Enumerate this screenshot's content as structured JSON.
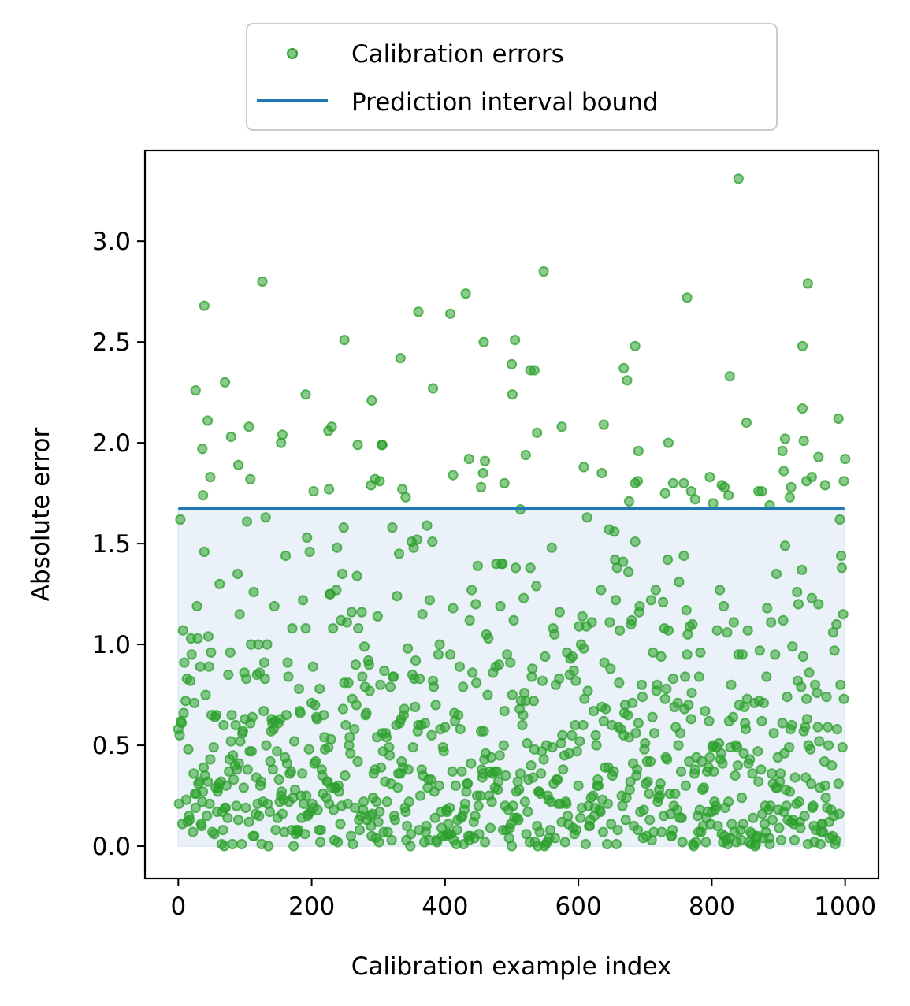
{
  "chart_data": {
    "type": "scatter",
    "xlabel": "Calibration example index",
    "ylabel": "Absolute error",
    "xlim": [
      -50,
      1050
    ],
    "ylim": [
      -0.16,
      3.45
    ],
    "x_ticks": [
      0,
      200,
      400,
      600,
      800,
      1000
    ],
    "y_ticks": [
      0.0,
      0.5,
      1.0,
      1.5,
      2.0,
      2.5,
      3.0
    ],
    "x_tick_labels": [
      "0",
      "200",
      "400",
      "600",
      "800",
      "1000"
    ],
    "y_tick_labels": [
      "0.0",
      "0.5",
      "1.0",
      "1.5",
      "2.0",
      "2.5",
      "3.0"
    ],
    "legend": {
      "placement": "top-center-outside",
      "entries": [
        {
          "label": "Calibration errors",
          "kind": "marker",
          "color": "#2ca02c"
        },
        {
          "label": "Prediction interval bound",
          "kind": "line",
          "color": "#1f77b4"
        }
      ]
    },
    "bound": {
      "y": 1.675,
      "x_range": [
        0,
        999
      ],
      "color": "#1f77b4"
    },
    "fill": {
      "y_range": [
        0,
        1.675
      ],
      "x_range": [
        0,
        999
      ],
      "color": "#dce8f4"
    },
    "series": [
      {
        "color": "#2ca02c",
        "n_points": 1000,
        "points": [
          [
            840,
            3.31
          ],
          [
            126,
            2.8
          ],
          [
            548,
            2.85
          ],
          [
            944,
            2.79
          ],
          [
            763,
            2.72
          ],
          [
            39,
            2.68
          ],
          [
            431,
            2.74
          ],
          [
            360,
            2.65
          ],
          [
            408,
            2.64
          ],
          [
            249,
            2.51
          ],
          [
            458,
            2.5
          ],
          [
            505,
            2.51
          ],
          [
            685,
            2.48
          ],
          [
            936,
            2.48
          ],
          [
            500,
            2.39
          ],
          [
            333,
            2.42
          ],
          [
            528,
            2.36
          ],
          [
            534,
            2.36
          ],
          [
            668,
            2.37
          ],
          [
            673,
            2.31
          ],
          [
            827,
            2.33
          ],
          [
            26,
            2.26
          ],
          [
            70,
            2.3
          ],
          [
            191,
            2.24
          ],
          [
            290,
            2.21
          ],
          [
            382,
            2.27
          ],
          [
            501,
            2.24
          ],
          [
            44,
            2.11
          ],
          [
            106,
            2.08
          ],
          [
            230,
            2.08
          ],
          [
            225,
            2.06
          ],
          [
            79,
            2.03
          ],
          [
            156,
            2.04
          ],
          [
            154,
            2.0
          ],
          [
            36,
            1.97
          ],
          [
            269,
            1.99
          ],
          [
            305,
            1.99
          ],
          [
            306,
            1.99
          ],
          [
            538,
            2.05
          ],
          [
            575,
            2.08
          ],
          [
            638,
            2.09
          ],
          [
            690,
            1.96
          ],
          [
            735,
            2.0
          ],
          [
            852,
            2.1
          ],
          [
            936,
            2.17
          ],
          [
            938,
            2.01
          ],
          [
            910,
            2.02
          ],
          [
            990,
            2.12
          ],
          [
            906,
            1.96
          ],
          [
            960,
            1.93
          ],
          [
            1000,
            1.92
          ],
          [
            521,
            1.94
          ],
          [
            436,
            1.92
          ],
          [
            460,
            1.91
          ],
          [
            489,
            1.8
          ],
          [
            412,
            1.84
          ],
          [
            608,
            1.88
          ],
          [
            635,
            1.85
          ],
          [
            90,
            1.89
          ],
          [
            48,
            1.83
          ],
          [
            108,
            1.82
          ],
          [
            295,
            1.82
          ],
          [
            302,
            1.81
          ],
          [
            289,
            1.79
          ],
          [
            336,
            1.77
          ],
          [
            457,
            1.85
          ],
          [
            454,
            1.78
          ],
          [
            685,
            1.8
          ],
          [
            689,
            1.81
          ],
          [
            730,
            1.75
          ],
          [
            742,
            1.8
          ],
          [
            758,
            1.8
          ],
          [
            769,
            1.76
          ],
          [
            797,
            1.83
          ],
          [
            815,
            1.79
          ],
          [
            819,
            1.78
          ],
          [
            870,
            1.76
          ],
          [
            875,
            1.76
          ],
          [
            908,
            1.86
          ],
          [
            919,
            1.78
          ],
          [
            942,
            1.81
          ],
          [
            950,
            1.83
          ],
          [
            970,
            1.79
          ],
          [
            998,
            1.81
          ],
          [
            37,
            1.74
          ],
          [
            203,
            1.76
          ],
          [
            226,
            1.77
          ],
          [
            341,
            1.73
          ],
          [
            513,
            1.67
          ],
          [
            676,
            1.71
          ],
          [
            775,
            1.72
          ],
          [
            802,
            1.7
          ],
          [
            825,
            1.74
          ],
          [
            887,
            1.69
          ],
          [
            917,
            1.73
          ]
        ]
      }
    ]
  }
}
